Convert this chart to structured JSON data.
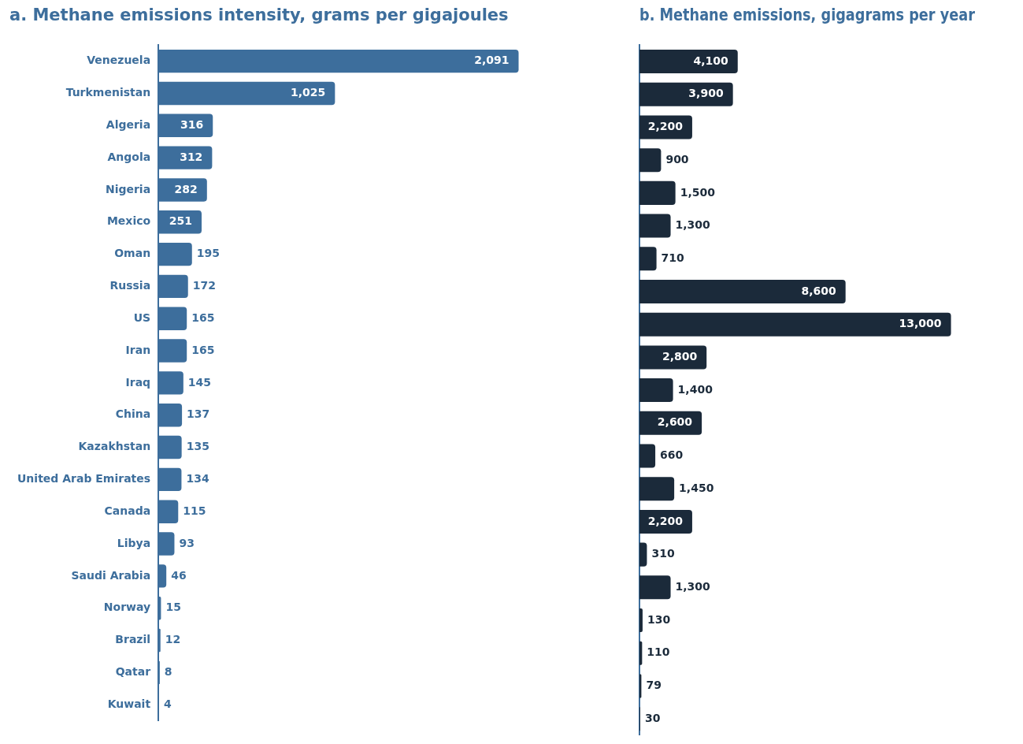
{
  "chart_data": [
    {
      "type": "bar",
      "orientation": "horizontal",
      "title": "a. Methane emissions intensity, grams per gigajoules",
      "categories": [
        "Venezuela",
        "Turkmenistan",
        "Algeria",
        "Angola",
        "Nigeria",
        "Mexico",
        "Oman",
        "Russia",
        "US",
        "Iran",
        "Iraq",
        "China",
        "Kazakhstan",
        "United Arab Emirates",
        "Canada",
        "Libya",
        "Saudi Arabia",
        "Norway",
        "Brazil",
        "Qatar",
        "Kuwait"
      ],
      "values": [
        2091,
        1025,
        316,
        312,
        282,
        251,
        195,
        172,
        165,
        165,
        145,
        137,
        135,
        134,
        115,
        93,
        46,
        15,
        12,
        8,
        4
      ],
      "value_labels": [
        "2,091",
        "1,025",
        "316",
        "312",
        "282",
        "251",
        "195",
        "172",
        "165",
        "165",
        "145",
        "137",
        "135",
        "134",
        "115",
        "93",
        "46",
        "15",
        "12",
        "8",
        "4"
      ],
      "color": "#3d6e9c",
      "tick_labels": "y"
    },
    {
      "type": "bar",
      "orientation": "horizontal",
      "title": "b. Methane emissions, gigagrams per year",
      "categories": [
        null,
        null,
        null,
        null,
        null,
        null,
        null,
        null,
        null,
        null,
        null,
        null,
        null,
        null,
        null,
        null,
        null,
        null,
        null,
        null,
        null
      ],
      "values": [
        4100,
        3900,
        2200,
        900,
        1500,
        1300,
        710,
        8600,
        13000,
        2800,
        1400,
        2600,
        660,
        1450,
        2200,
        310,
        1300,
        130,
        110,
        79,
        30
      ],
      "value_labels": [
        "4,100",
        "3,900",
        "2,200",
        "900",
        "1,500",
        "1,300",
        "710",
        "8,600",
        "13,000",
        "2,800",
        "1,400",
        "2,600",
        "660",
        "1,450",
        "2,200",
        "310",
        "1,300",
        "130",
        "110",
        "79",
        "30"
      ],
      "color": "#1b2a3a",
      "tick_labels": false
    }
  ]
}
